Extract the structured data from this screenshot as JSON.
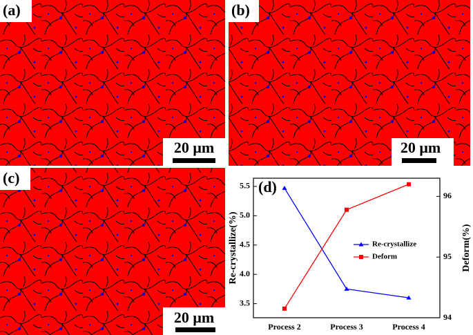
{
  "panels": [
    {
      "label": "(a)",
      "scale_bar": "20 μm"
    },
    {
      "label": "(b)",
      "scale_bar": "20 μm"
    },
    {
      "label": "(c)",
      "scale_bar": "20 μm"
    }
  ],
  "chart_data": {
    "type": "line",
    "title": "(d)",
    "y_label": "Re-crystallize(%)",
    "y2_label": "Deform(%)",
    "categories": [
      "Process 2",
      "Process 3",
      "Process 4"
    ],
    "series": [
      {
        "name": "Re-crystallize",
        "color": "#0000ff",
        "marker": "triangle",
        "values": [
          5.47,
          3.75,
          3.6
        ]
      },
      {
        "name": "Deform",
        "color": "#ff0000",
        "marker": "square",
        "axis": "y2",
        "values": [
          94.15,
          95.78,
          96.2
        ]
      }
    ],
    "ylim": [
      3.26,
      5.64
    ],
    "yticks": [
      3.5,
      {
        "value": 4.0,
        "label": "4.0"
      },
      4.5,
      {
        "value": 5.0,
        "label": "5.0"
      },
      5.5
    ],
    "y2lim": [
      94,
      96.3
    ],
    "y2ticks": [
      94,
      95,
      96
    ],
    "legend": "center right",
    "grid": false
  }
}
